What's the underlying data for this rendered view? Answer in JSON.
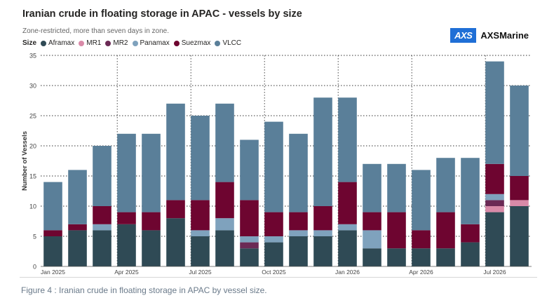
{
  "header": {
    "title": "Iranian crude in floating storage in APAC - vessels by size",
    "subtitle": "Zone-restricted, more than seven days in zone."
  },
  "logo": {
    "mark": "AXS",
    "name": "AXSMarine"
  },
  "legend": {
    "title": "Size",
    "items": [
      {
        "name": "Aframax",
        "color": "#2f4a55"
      },
      {
        "name": "MR1",
        "color": "#d98aa8"
      },
      {
        "name": "MR2",
        "color": "#6b2a55"
      },
      {
        "name": "Panamax",
        "color": "#7fa2bd"
      },
      {
        "name": "Suezmax",
        "color": "#6e0530"
      },
      {
        "name": "VLCC",
        "color": "#5a7f99"
      }
    ]
  },
  "caption": "Figure 4 : Iranian crude in floating storage in APAC by vessel size.",
  "chart_data": {
    "type": "bar",
    "stacked": true,
    "ylabel": "Number of Vessels",
    "ylim": [
      0,
      35
    ],
    "yticks": [
      0,
      5,
      10,
      15,
      20,
      25,
      30,
      35
    ],
    "x_tick_labels": [
      {
        "label": "Jan 2025",
        "index": 0
      },
      {
        "label": "Apr 2025",
        "index": 3
      },
      {
        "label": "Jul 2025",
        "index": 6
      },
      {
        "label": "Oct 2025",
        "index": 9
      },
      {
        "label": "Jan 2026",
        "index": 12
      },
      {
        "label": "Apr 2026",
        "index": 15
      },
      {
        "label": "Jul 2026",
        "index": 18
      }
    ],
    "grid": true,
    "legend_position": "top-left",
    "series": [
      {
        "name": "Aframax",
        "color": "#2f4a55",
        "values": [
          5,
          6,
          6,
          7,
          6,
          8,
          5,
          6,
          3,
          4,
          5,
          5,
          6,
          3,
          3,
          3,
          3,
          4,
          9,
          10
        ]
      },
      {
        "name": "MR1",
        "color": "#d98aa8",
        "values": [
          0,
          0,
          0,
          0,
          0,
          0,
          0,
          0,
          0,
          0,
          0,
          0,
          0,
          0,
          0,
          0,
          0,
          0,
          1,
          1
        ]
      },
      {
        "name": "MR2",
        "color": "#6b2a55",
        "values": [
          0,
          0,
          0,
          0,
          0,
          0,
          0,
          0,
          1,
          0,
          0,
          0,
          0,
          0,
          0,
          0,
          0,
          0,
          1,
          0
        ]
      },
      {
        "name": "Panamax",
        "color": "#7fa2bd",
        "values": [
          0,
          0,
          1,
          0,
          0,
          0,
          1,
          2,
          1,
          1,
          1,
          1,
          1,
          3,
          0,
          0,
          0,
          0,
          1,
          0
        ]
      },
      {
        "name": "Suezmax",
        "color": "#6e0530",
        "values": [
          1,
          1,
          3,
          2,
          3,
          3,
          5,
          6,
          6,
          4,
          3,
          4,
          7,
          3,
          6,
          3,
          6,
          3,
          5,
          4
        ]
      },
      {
        "name": "VLCC",
        "color": "#5a7f99",
        "values": [
          8,
          9,
          10,
          13,
          13,
          16,
          14,
          13,
          10,
          15,
          13,
          18,
          14,
          8,
          8,
          10,
          9,
          11,
          17,
          15
        ]
      }
    ]
  }
}
